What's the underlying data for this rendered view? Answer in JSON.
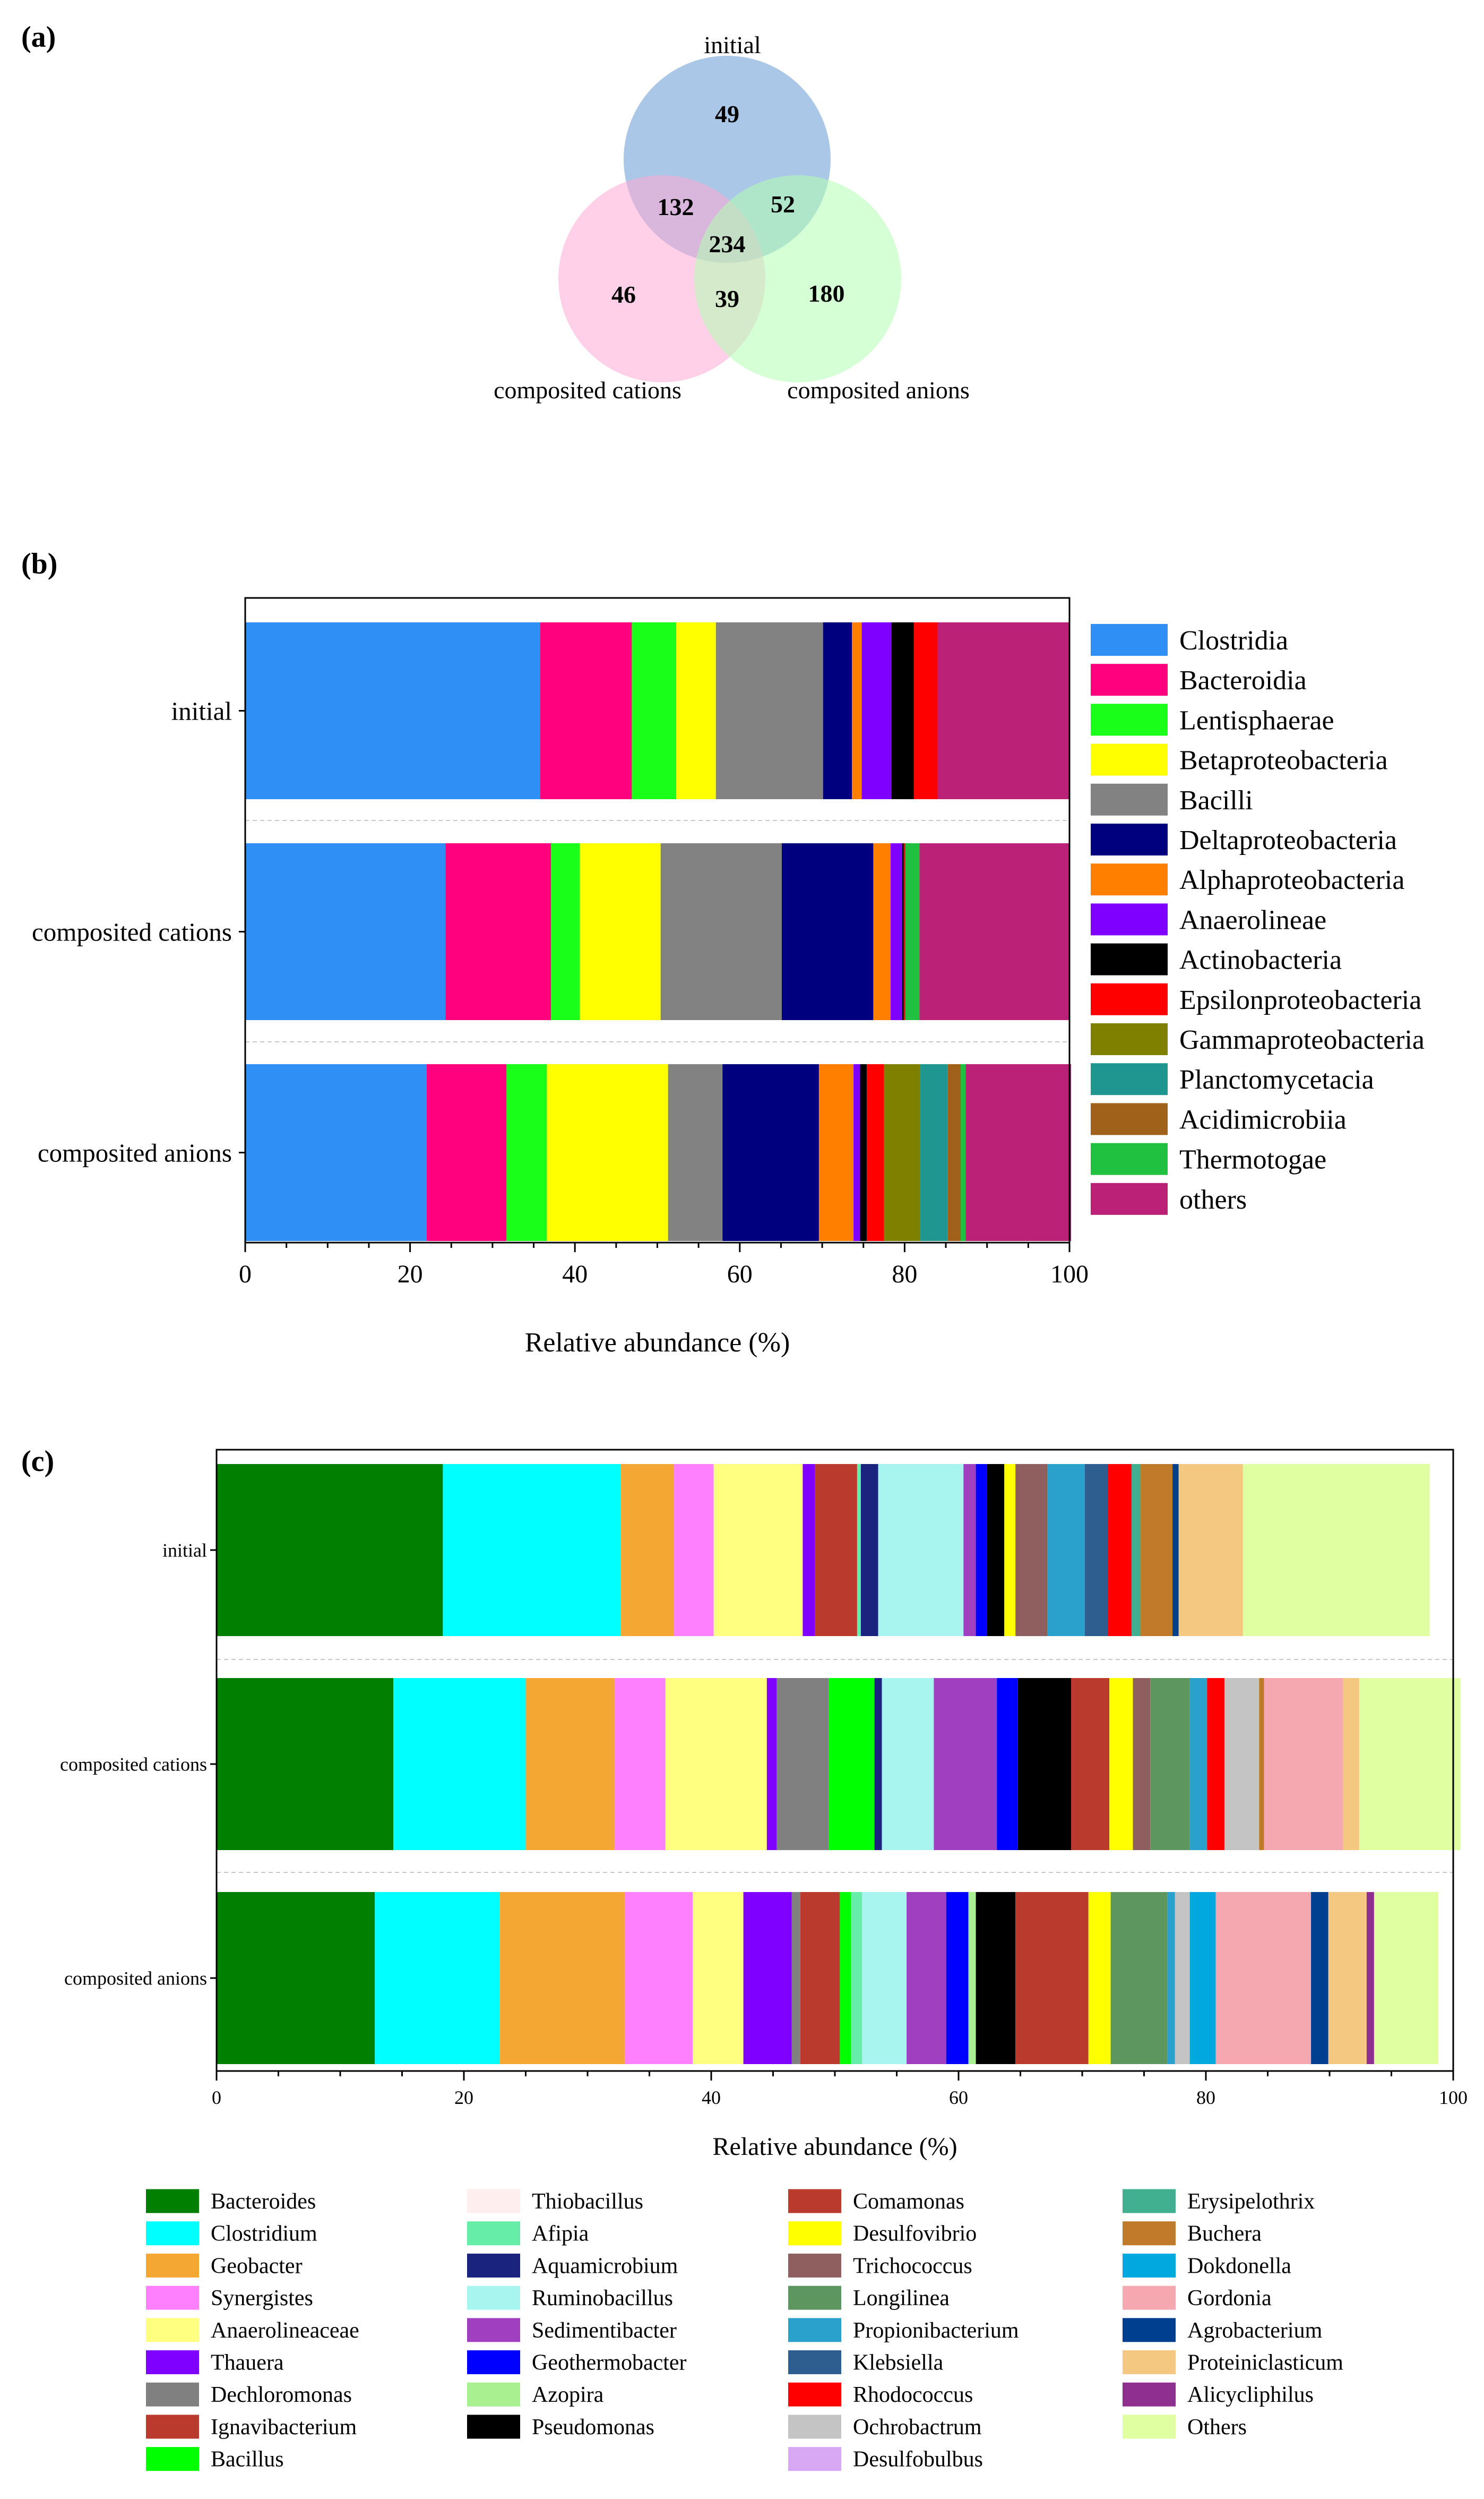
{
  "figure_label_a": "(a)",
  "figure_label_b": "(b)",
  "figure_label_c": "(c)",
  "chart_data": [
    {
      "type": "venn",
      "panel": "(a)",
      "sets": [
        {
          "name": "initial",
          "color": "#6699d4"
        },
        {
          "name": "composited cations",
          "color": "#ffaad4"
        },
        {
          "name": "composited anions",
          "color": "#b3ffb3"
        }
      ],
      "regions": [
        {
          "sets": [
            "initial"
          ],
          "count": 49
        },
        {
          "sets": [
            "initial",
            "composited cations"
          ],
          "count": 132
        },
        {
          "sets": [
            "initial",
            "composited anions"
          ],
          "count": 52
        },
        {
          "sets": [
            "initial",
            "composited cations",
            "composited anions"
          ],
          "count": 234
        },
        {
          "sets": [
            "composited cations"
          ],
          "count": 46
        },
        {
          "sets": [
            "composited cations",
            "composited anions"
          ],
          "count": 39
        },
        {
          "sets": [
            "composited anions"
          ],
          "count": 180
        }
      ]
    },
    {
      "type": "bar",
      "orientation": "horizontal",
      "stacked": true,
      "panel": "(b)",
      "categories": [
        "initial",
        "composited cations",
        "composited anions"
      ],
      "xlabel": "Relative abundance (%)",
      "xlim": [
        0,
        100
      ],
      "xticks": [
        "0",
        "20",
        "40",
        "60",
        "80",
        "100"
      ],
      "legend_position": "right",
      "series": [
        {
          "name": "Clostridia",
          "color": "#2f8ff5",
          "values": [
            35.8,
            24.3,
            22.0
          ]
        },
        {
          "name": "Bacteroidia",
          "color": "#ff007f",
          "values": [
            11.1,
            12.8,
            9.7
          ]
        },
        {
          "name": "Lentisphaerae",
          "color": "#1aff1a",
          "values": [
            5.4,
            3.5,
            4.9
          ]
        },
        {
          "name": "Betaproteobacteria",
          "color": "#ffff00",
          "values": [
            4.8,
            9.8,
            14.7
          ]
        },
        {
          "name": "Bacilli",
          "color": "#828282",
          "values": [
            13.0,
            14.7,
            6.6
          ]
        },
        {
          "name": "Deltaproteobacteria",
          "color": "#00007f",
          "values": [
            3.5,
            11.1,
            11.7
          ]
        },
        {
          "name": "Alphaproteobacteria",
          "color": "#ff8000",
          "values": [
            1.2,
            2.1,
            4.2
          ]
        },
        {
          "name": "Anaerolineae",
          "color": "#8000ff",
          "values": [
            3.6,
            1.4,
            0.8
          ]
        },
        {
          "name": "Actinobacteria",
          "color": "#000000",
          "values": [
            2.7,
            0.2,
            0.8
          ]
        },
        {
          "name": "Epsilonproteobacteria",
          "color": "#ff0000",
          "values": [
            2.9,
            0.2,
            2.1
          ]
        },
        {
          "name": "Gammaproteobacteria",
          "color": "#808000",
          "values": [
            0.0,
            0.0,
            4.4
          ]
        },
        {
          "name": "Planctomycetacia",
          "color": "#1f9690",
          "values": [
            0.0,
            0.0,
            3.3
          ]
        },
        {
          "name": "Acidimicrobiia",
          "color": "#a0621a",
          "values": [
            0.0,
            0.0,
            1.6
          ]
        },
        {
          "name": "Thermotogae",
          "color": "#20c040",
          "values": [
            0.0,
            1.7,
            0.6
          ]
        },
        {
          "name": "others",
          "color": "#bb2277",
          "values": [
            16.0,
            18.2,
            12.8
          ]
        }
      ]
    },
    {
      "type": "bar",
      "orientation": "horizontal",
      "stacked": true,
      "panel": "(c)",
      "categories": [
        "initial",
        "composited cations",
        "composited anions"
      ],
      "xlabel": "Relative abundance (%)",
      "xlim": [
        0,
        100
      ],
      "xticks": [
        "0",
        "20",
        "40",
        "60",
        "80",
        "100"
      ],
      "legend_position": "bottom",
      "series": [
        {
          "name": "Bacteroides",
          "color": "#007f00",
          "values": [
            18.3,
            14.3,
            12.8
          ]
        },
        {
          "name": "Clostridium",
          "color": "#00ffff",
          "values": [
            14.4,
            10.7,
            10.1
          ]
        },
        {
          "name": "Geobacter",
          "color": "#f5a733",
          "values": [
            4.3,
            7.2,
            10.1
          ]
        },
        {
          "name": "Synergistes",
          "color": "#ff80ff",
          "values": [
            3.2,
            4.1,
            5.5
          ]
        },
        {
          "name": "Anaerolineaceae",
          "color": "#ffff80",
          "values": [
            7.2,
            8.2,
            4.1
          ]
        },
        {
          "name": "Thauera",
          "color": "#8000ff",
          "values": [
            1.0,
            0.8,
            3.9
          ]
        },
        {
          "name": "Dechloromonas",
          "color": "#808080",
          "values": [
            0.0,
            4.2,
            0.7
          ]
        },
        {
          "name": "Ignavibacterium",
          "color": "#bb3a2e",
          "values": [
            3.4,
            0.0,
            3.2
          ]
        },
        {
          "name": "Bacillus",
          "color": "#00ff00",
          "values": [
            0.0,
            3.7,
            0.9
          ]
        },
        {
          "name": "Thiobacillus",
          "color": "#ffeeee",
          "values": [
            0.0,
            0.0,
            0.0
          ]
        },
        {
          "name": "Afipia",
          "color": "#66eea8",
          "values": [
            0.3,
            0.0,
            0.9
          ]
        },
        {
          "name": "Aquamicrobium",
          "color": "#1a237e",
          "values": [
            1.4,
            0.6,
            0.0
          ]
        },
        {
          "name": "Ruminobacillus",
          "color": "#a8f5f0",
          "values": [
            6.9,
            4.2,
            3.6
          ]
        },
        {
          "name": "Sedimentibacter",
          "color": "#a040c0",
          "values": [
            1.0,
            5.1,
            3.2
          ]
        },
        {
          "name": "Geothermobacter",
          "color": "#0000ff",
          "values": [
            0.9,
            1.7,
            1.8
          ]
        },
        {
          "name": "Azopira",
          "color": "#a8f090",
          "values": [
            0.0,
            0.0,
            0.6
          ]
        },
        {
          "name": "Pseudomonas",
          "color": "#000000",
          "values": [
            1.4,
            4.3,
            3.2
          ]
        },
        {
          "name": "Comamonas",
          "color": "#bb3a2e",
          "values": [
            0.0,
            3.1,
            5.9
          ]
        },
        {
          "name": "Desulfovibrio",
          "color": "#ffff00",
          "values": [
            0.9,
            1.9,
            1.8
          ]
        },
        {
          "name": "Trichococcus",
          "color": "#8f5e5e",
          "values": [
            2.6,
            1.4,
            0.0
          ]
        },
        {
          "name": "Longilinea",
          "color": "#5e9660",
          "values": [
            0.0,
            3.2,
            4.6
          ]
        },
        {
          "name": "Propionibacterium",
          "color": "#2aa0cc",
          "values": [
            3.0,
            1.4,
            0.6
          ]
        },
        {
          "name": "Klebsiella",
          "color": "#2e5e8f",
          "values": [
            1.9,
            0.0,
            0.0
          ]
        },
        {
          "name": "Rhodococcus",
          "color": "#ff0000",
          "values": [
            1.9,
            1.4,
            0.0
          ]
        },
        {
          "name": "Ochrobactrum",
          "color": "#c4c4c4",
          "values": [
            0.0,
            2.8,
            1.2
          ]
        },
        {
          "name": "Desulfobulbus",
          "color": "#d8a8f5",
          "values": [
            0.0,
            0.0,
            0.0
          ]
        },
        {
          "name": "Erysipelothrix",
          "color": "#40b090",
          "values": [
            0.7,
            0.0,
            0.0
          ]
        },
        {
          "name": "Buchera",
          "color": "#c07a2a",
          "values": [
            2.6,
            0.4,
            0.0
          ]
        },
        {
          "name": "Dokdonella",
          "color": "#00a8e0",
          "values": [
            0.0,
            0.0,
            2.1
          ]
        },
        {
          "name": "Gordonia",
          "color": "#f5a8b0",
          "values": [
            0.0,
            6.4,
            7.7
          ]
        },
        {
          "name": "Agrobacterium",
          "color": "#003f8f",
          "values": [
            0.5,
            0.0,
            1.4
          ]
        },
        {
          "name": "Proteiniclasticum",
          "color": "#f5c882",
          "values": [
            5.2,
            1.3,
            3.1
          ]
        },
        {
          "name": "Alicycliphilus",
          "color": "#8f3090",
          "values": [
            0.0,
            0.0,
            0.6
          ]
        },
        {
          "name": "Others",
          "color": "#e0ffa0",
          "values": [
            15.1,
            8.2,
            5.2
          ]
        }
      ]
    }
  ]
}
